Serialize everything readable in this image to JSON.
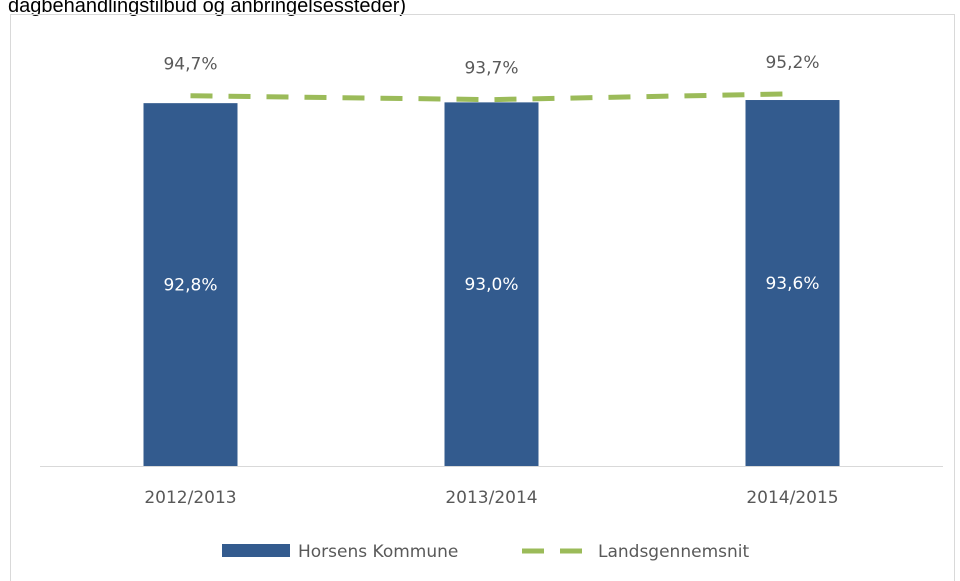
{
  "chart_data": {
    "type": "bar",
    "title": "dagbehandlingstilbud og anbringelsessteder)",
    "categories": [
      "2012/2013",
      "2013/2014",
      "2014/2015"
    ],
    "ylim": [
      0,
      100
    ],
    "series": [
      {
        "name": "Horsens Kommune",
        "type": "bar",
        "color": "#335b8e",
        "values": [
          92.8,
          93.0,
          93.6
        ],
        "value_labels": [
          "92,8%",
          "93,0%",
          "93,6%"
        ]
      },
      {
        "name": "Landsgennemsnit",
        "type": "line",
        "color": "#9bbb59",
        "dashed": true,
        "values": [
          94.7,
          93.7,
          95.2
        ],
        "value_labels": [
          "94,7%",
          "93,7%",
          "95,2%"
        ]
      }
    ]
  }
}
